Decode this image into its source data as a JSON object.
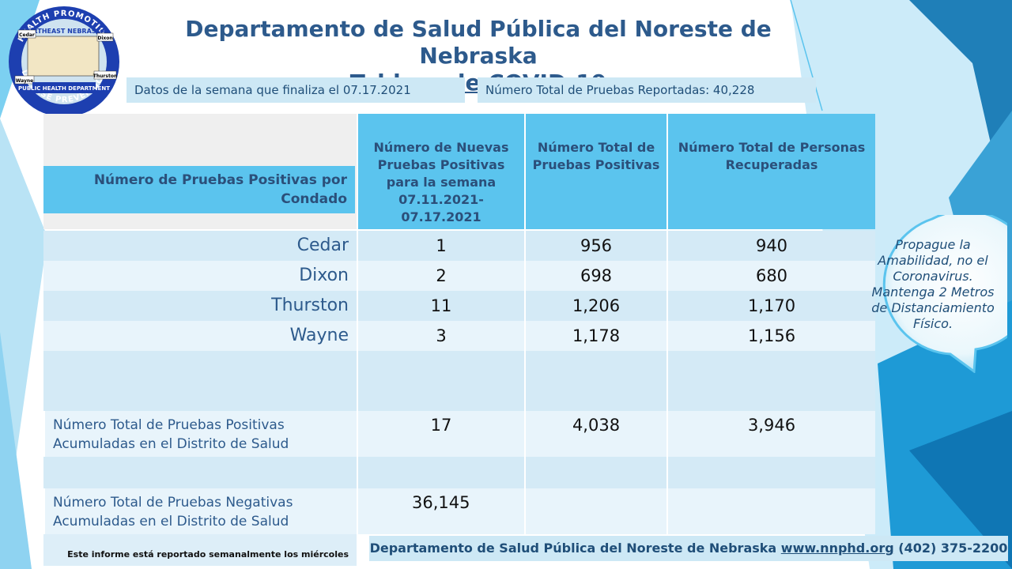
{
  "colors": {
    "accent": "#5bc4ee",
    "title": "#2d5a8c",
    "row_dark": "#d4eaf6",
    "row_light": "#e8f4fb",
    "info_box": "#cde8f5"
  },
  "logo": {
    "top_text": "HEALTH PROMOTION",
    "center_text": "NORTHEAST NEBRASKA",
    "band_text": "PUBLIC HEALTH DEPARTMENT",
    "bottom_text": "DISEASE PREVENTION",
    "county_labels": [
      "Cedar",
      "Dixon",
      "Wayne",
      "Thurston"
    ]
  },
  "title": {
    "line1": "Departamento de Salud Pública del Noreste de Nebraska",
    "line2": "Tablero de COVID-19"
  },
  "info": {
    "week": "Datos de la semana que finaliza el 07.17.2021",
    "total_tests": "Número Total de Pruebas Reportadas: 40,228"
  },
  "table": {
    "corner_label": "Número de Pruebas Positivas por Condado",
    "headers": [
      "Número de Nuevas Pruebas Positivas para la semana 07.11.2021-07.17.2021",
      "Número Total de Pruebas Positivas",
      "Número Total de Personas Recuperadas"
    ],
    "counties": [
      {
        "name": "Cedar",
        "new": "1",
        "total": "956",
        "recovered": "940"
      },
      {
        "name": "Dixon",
        "new": "2",
        "total": "698",
        "recovered": "680"
      },
      {
        "name": "Thurston",
        "new": "11",
        "total": "1,206",
        "recovered": "1,170"
      },
      {
        "name": "Wayne",
        "new": "3",
        "total": "1,178",
        "recovered": "1,156"
      }
    ],
    "cumulative_positive": {
      "label": "Número Total de Pruebas Positivas Acumuladas en el Distrito de Salud",
      "new": "17",
      "total": "4,038",
      "recovered": "3,946"
    },
    "cumulative_negative": {
      "label": "Número Total de Pruebas Negativas Acumuladas en el Distrito de Salud",
      "value": "36,145"
    }
  },
  "footer": {
    "note": "Este informe está reportado semanalmente  los miércoles",
    "org": "Departamento de Salud Pública del Noreste de Nebraska",
    "url": "www.nnphd.org",
    "phone": "(402) 375-2200"
  },
  "bubble": {
    "text": "Propague la Amabilidad, no el Coronavirus. Mantenga 2 Metros de Distanciamiento Físico."
  }
}
